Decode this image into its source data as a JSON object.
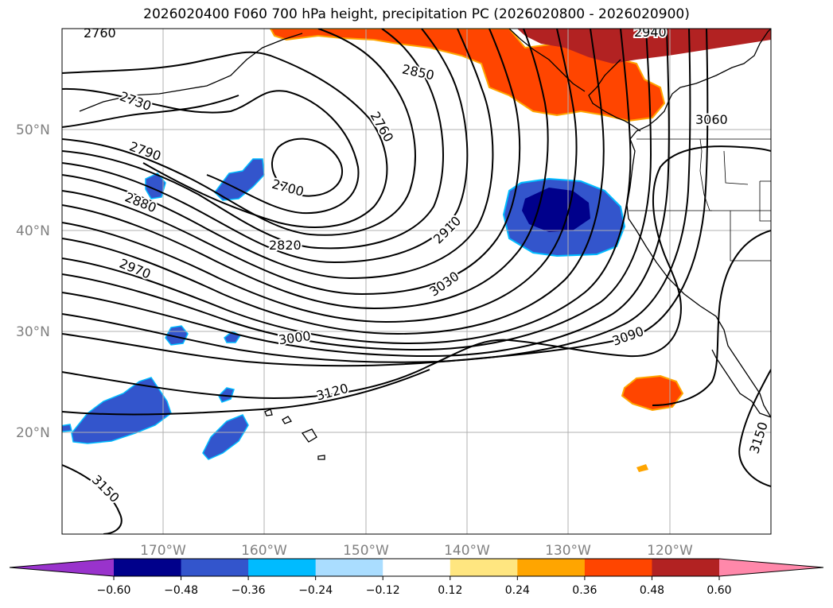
{
  "title": "2026020400 F060 700 hPa height, precipitation PC (2026020800 - 2026020900)",
  "lat_labels": [
    "50°N",
    "40°N",
    "30°N",
    "20°N"
  ],
  "lon_labels": [
    "170°W",
    "160°W",
    "150°W",
    "140°W",
    "130°W",
    "120°W"
  ],
  "contour_labels": [
    "2760",
    "2730",
    "2790",
    "2880",
    "2970",
    "2700",
    "2820",
    "2760",
    "2850",
    "2910",
    "3030",
    "3000",
    "3120",
    "3090",
    "3060",
    "2940",
    "3150",
    "3150"
  ],
  "colorbar": {
    "ticks": [
      "−0.60",
      "−0.48",
      "−0.36",
      "−0.24",
      "−0.12",
      "0.12",
      "0.24",
      "0.36",
      "0.48",
      "0.60"
    ],
    "colors": [
      "#9933cc",
      "#00008b",
      "#3355cc",
      "#00bbff",
      "#aaddff",
      "#ffffff",
      "#ffe680",
      "#ffa500",
      "#ff4500",
      "#b22222",
      "#ff88aa"
    ]
  }
}
